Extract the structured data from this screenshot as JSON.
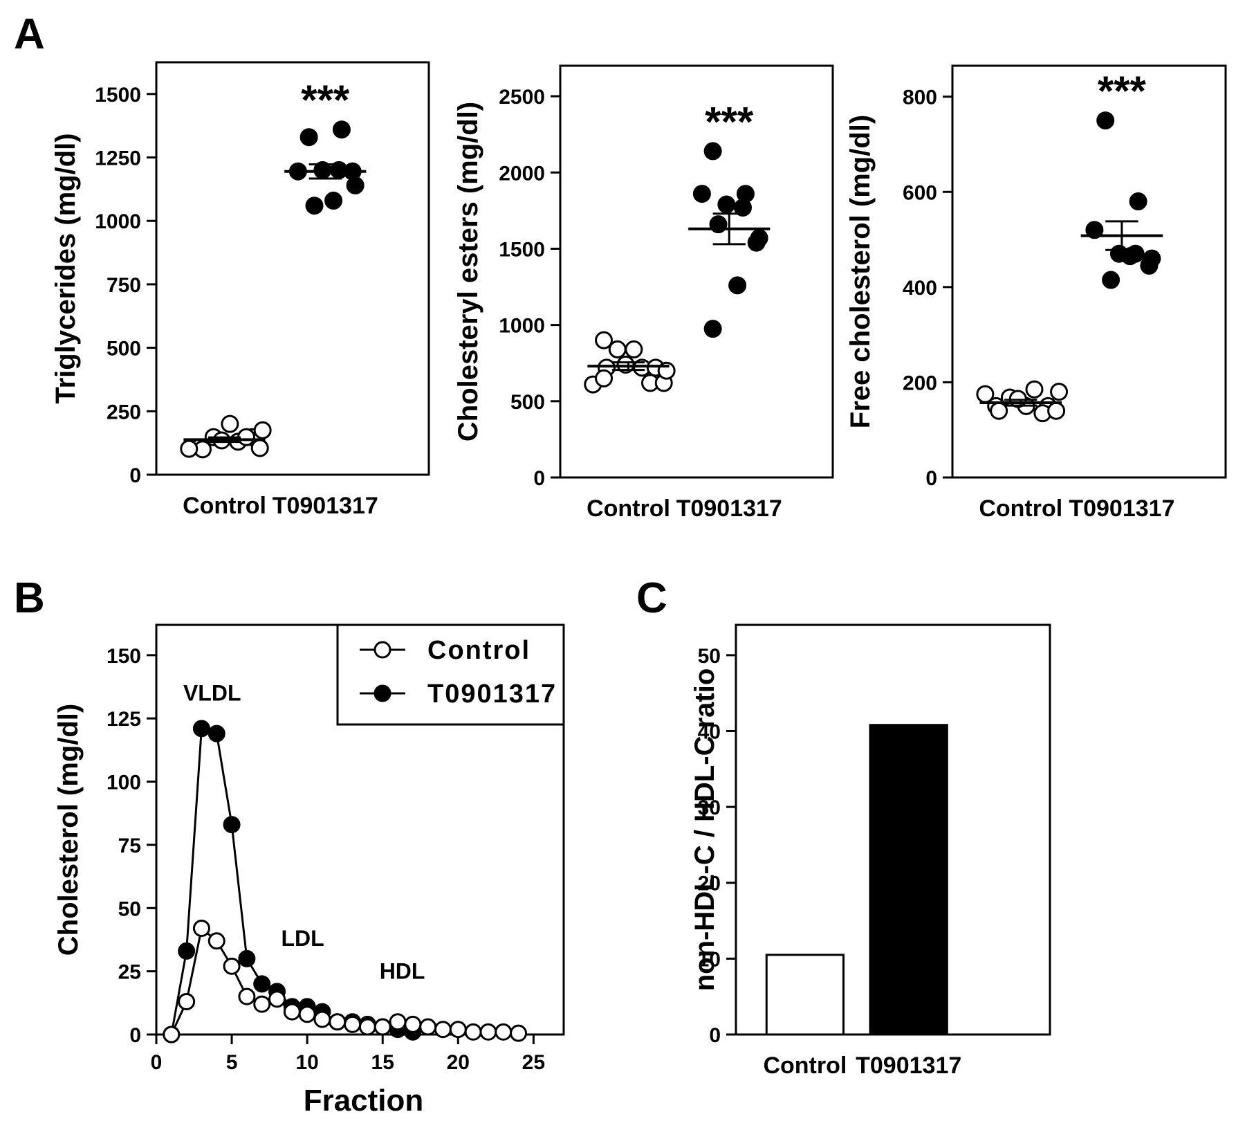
{
  "figure": {
    "panel_a_letter": "A",
    "panel_b_letter": "B",
    "panel_c_letter": "C"
  },
  "chart_data": [
    {
      "type": "scatter",
      "panel": "A1",
      "ylabel": "Triglycerides (mg/dl)",
      "ylim": [
        0,
        1625
      ],
      "yticks": [
        0,
        250,
        500,
        750,
        1000,
        1250,
        1500
      ],
      "categories": [
        "Control",
        "T0901317"
      ],
      "significance": "***",
      "groups": [
        {
          "name": "Control",
          "marker": "open",
          "values": [
            108,
            148,
            200,
            135,
            130,
            148,
            100,
            148,
            105,
            102,
            175
          ],
          "mean": 138,
          "sem": 9
        },
        {
          "name": "T0901317",
          "marker": "filled",
          "values": [
            1330,
            1360,
            1195,
            1200,
            1200,
            1140,
            1195,
            1060,
            1080
          ],
          "mean": 1195,
          "sem": 28
        }
      ]
    },
    {
      "type": "scatter",
      "panel": "A2",
      "ylabel": "Cholesteryl esters (mg/dl)",
      "ylim": [
        0,
        2700
      ],
      "yticks": [
        0,
        500,
        1000,
        1500,
        2000,
        2500
      ],
      "categories": [
        "Control",
        "T0901317"
      ],
      "significance": "***",
      "groups": [
        {
          "name": "Control",
          "marker": "open",
          "values": [
            900,
            840,
            840,
            740,
            720,
            720,
            720,
            620,
            620,
            610,
            700,
            650
          ],
          "mean": 730,
          "sem": 25
        },
        {
          "name": "T0901317",
          "marker": "filled",
          "values": [
            2140,
            1860,
            1860,
            1790,
            1770,
            1570,
            1540,
            1660,
            1260,
            975
          ],
          "mean": 1630,
          "sem": 100
        }
      ]
    },
    {
      "type": "scatter",
      "panel": "A3",
      "ylabel": "Free cholesterol (mg/dl)",
      "ylim": [
        0,
        865
      ],
      "yticks": [
        0,
        200,
        400,
        600,
        800
      ],
      "categories": [
        "Control",
        "T0901317"
      ],
      "significance": "***",
      "groups": [
        {
          "name": "Control",
          "marker": "open",
          "values": [
            150,
            168,
            150,
            165,
            185,
            150,
            140,
            135,
            140,
            175,
            180
          ],
          "mean": 157,
          "sem": 6
        },
        {
          "name": "T0901317",
          "marker": "filled",
          "values": [
            750,
            580,
            520,
            470,
            470,
            460,
            445,
            415,
            465
          ],
          "mean": 508,
          "sem": 30
        }
      ]
    },
    {
      "type": "line",
      "panel": "B",
      "xlabel": "Fraction",
      "ylabel": "Cholesterol (mg/dl)",
      "xlim": [
        0,
        27
      ],
      "ylim": [
        0,
        162
      ],
      "xticks": [
        0,
        5,
        10,
        15,
        20,
        25
      ],
      "yticks": [
        0,
        25,
        50,
        75,
        100,
        125,
        150
      ],
      "annotations": [
        {
          "text": "VLDL",
          "x": 3.7,
          "y": 132
        },
        {
          "text": "LDL",
          "x": 9.7,
          "y": 35
        },
        {
          "text": "HDL",
          "x": 16.3,
          "y": 22
        }
      ],
      "series": [
        {
          "name": "Control",
          "marker": "open",
          "x": [
            1,
            2,
            3,
            4,
            5,
            6,
            7,
            8,
            9,
            10,
            11,
            12,
            13,
            14,
            15,
            16,
            17,
            18,
            19,
            20,
            21,
            22,
            23,
            24
          ],
          "values": [
            0,
            13,
            42,
            37,
            27,
            15,
            12,
            14,
            9,
            8,
            6,
            5,
            4,
            3,
            3,
            5,
            4,
            3,
            2,
            2,
            1,
            1,
            1,
            0.5
          ]
        },
        {
          "name": "T0901317",
          "marker": "filled",
          "x": [
            1,
            2,
            3,
            4,
            5,
            6,
            7,
            8,
            9,
            10,
            11,
            12,
            13,
            14,
            15,
            16,
            17
          ],
          "values": [
            0,
            33,
            121,
            119,
            83,
            30,
            20,
            17,
            11,
            11,
            9,
            5,
            5,
            4,
            3,
            2,
            1
          ]
        }
      ],
      "legend": [
        "Control",
        "T0901317"
      ]
    },
    {
      "type": "bar",
      "panel": "C",
      "ylabel": "non-HDL-C / HDL-C ratio",
      "ylim": [
        0,
        54
      ],
      "yticks": [
        0,
        10,
        20,
        30,
        40,
        50
      ],
      "categories": [
        "Control",
        "T0901317"
      ],
      "values": [
        10.5,
        40.8
      ],
      "colors": [
        "#ffffff",
        "#000000"
      ]
    }
  ]
}
